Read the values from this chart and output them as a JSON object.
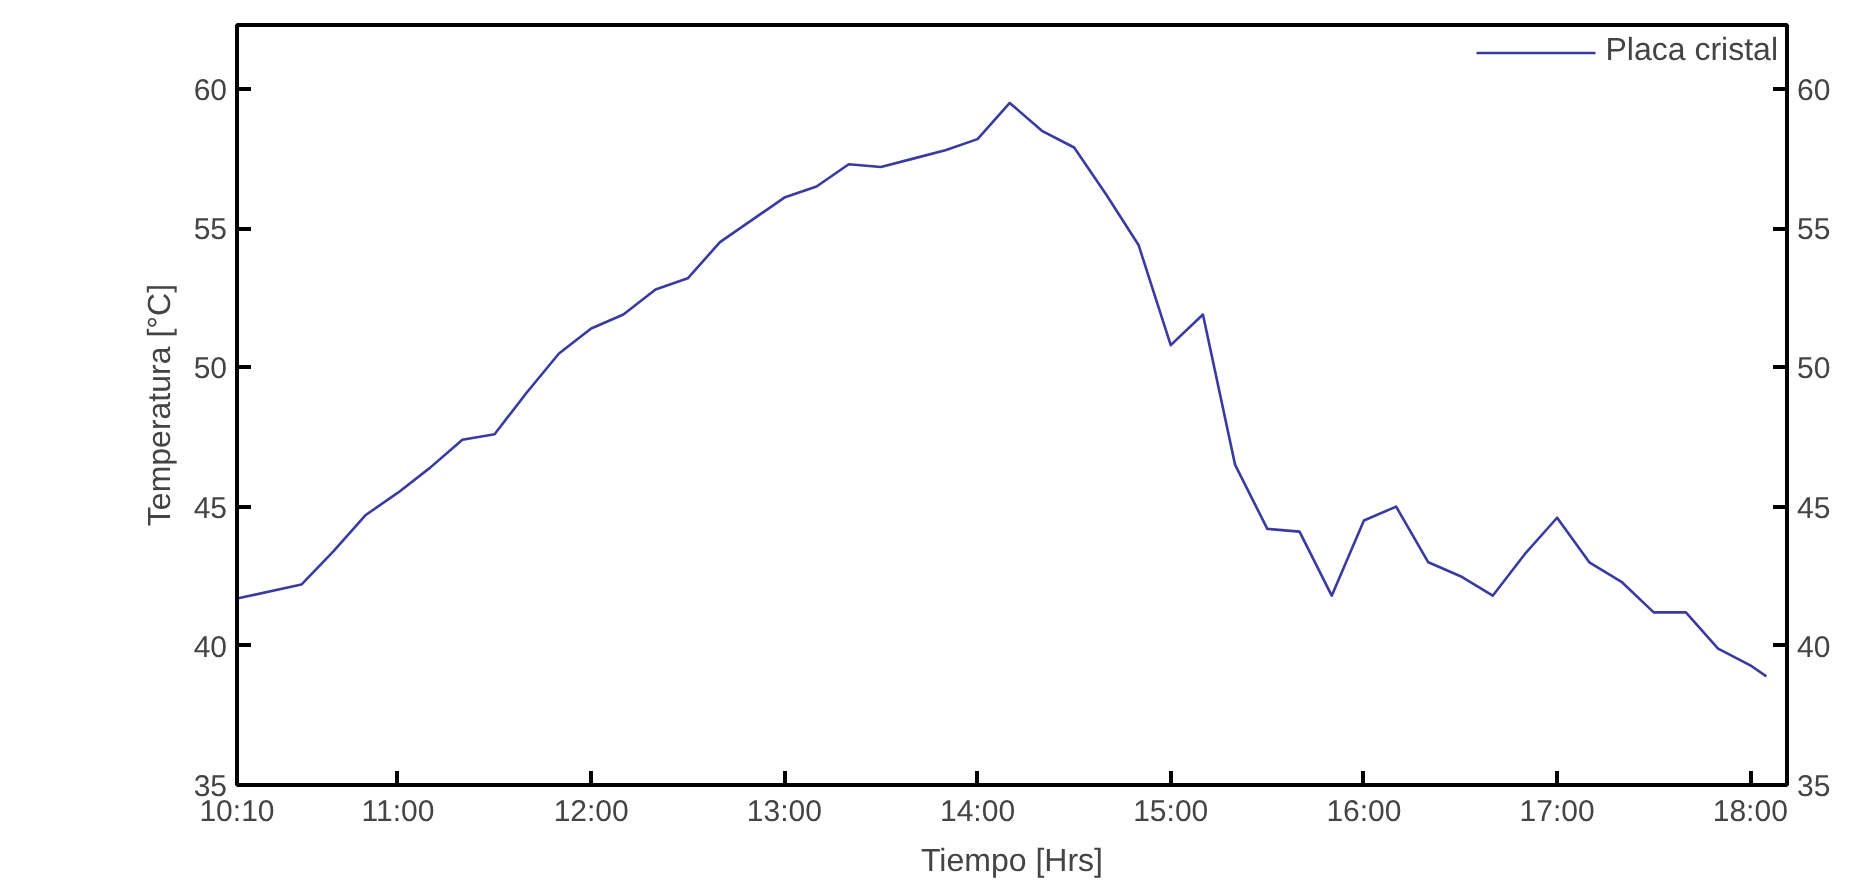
{
  "chart_data": {
    "type": "line",
    "xlabel": "Tiempo [Hrs]",
    "ylabel": "Temperatura [°C]",
    "x": [
      10.1667,
      10.5,
      10.6667,
      10.8333,
      11.0,
      11.1667,
      11.3333,
      11.5,
      11.6667,
      11.8333,
      12.0,
      12.1667,
      12.3333,
      12.5,
      12.6667,
      12.8333,
      13.0,
      13.1667,
      13.3333,
      13.5,
      13.6667,
      13.8333,
      14.0,
      14.1667,
      14.3333,
      14.5,
      14.6667,
      14.8333,
      15.0,
      15.1667,
      15.3333,
      15.5,
      15.6667,
      15.8333,
      16.0,
      16.1667,
      16.3333,
      16.5,
      16.6667,
      16.8333,
      17.0,
      17.1667,
      17.3333,
      17.5,
      17.6667,
      17.8333,
      18.0,
      18.0833
    ],
    "series": [
      {
        "name": "Placa cristal",
        "color": "#3a3aa0",
        "values": [
          41.7,
          42.2,
          43.4,
          44.7,
          45.5,
          46.4,
          47.4,
          47.6,
          49.1,
          50.5,
          51.4,
          51.9,
          52.8,
          53.2,
          54.5,
          55.3,
          56.1,
          56.5,
          57.3,
          57.2,
          57.5,
          57.8,
          58.2,
          59.5,
          58.5,
          57.9,
          56.2,
          54.4,
          50.8,
          51.9,
          46.5,
          44.2,
          44.1,
          41.8,
          44.5,
          45.0,
          43.0,
          42.5,
          41.8,
          43.3,
          44.6,
          43.0,
          42.3,
          41.2,
          41.2,
          39.9,
          39.3,
          38.9
        ]
      }
    ],
    "xlim": [
      10.1667,
      18.19
    ],
    "xticks": [
      {
        "value": 10.1667,
        "label": "10:10"
      },
      {
        "value": 11,
        "label": "11:00"
      },
      {
        "value": 12,
        "label": "12:00"
      },
      {
        "value": 13,
        "label": "13:00"
      },
      {
        "value": 14,
        "label": "14:00"
      },
      {
        "value": 15,
        "label": "15:00"
      },
      {
        "value": 16,
        "label": "16:00"
      },
      {
        "value": 17,
        "label": "17:00"
      },
      {
        "value": 18,
        "label": "18:00"
      }
    ],
    "ylim": [
      35,
      62.3
    ],
    "yticks": [
      35,
      40,
      45,
      50,
      55,
      60
    ],
    "y2lim": [
      35,
      62.3
    ],
    "y2ticks": [
      35,
      40,
      45,
      50,
      55,
      60
    ],
    "grid": false,
    "legend": "top right",
    "marker": "none",
    "line_style": "solid"
  }
}
